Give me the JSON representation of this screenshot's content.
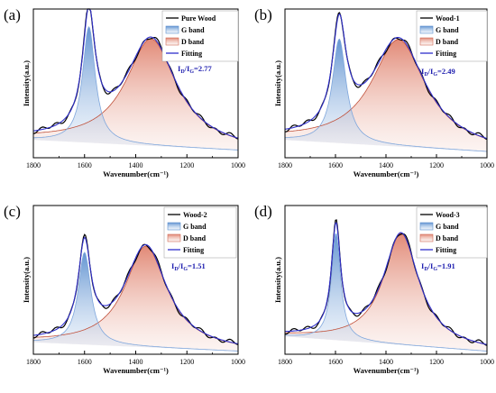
{
  "chart_data": [
    {
      "type": "line",
      "panel_label": "(a)",
      "xlabel": "Wavenumber(cm⁻¹)",
      "ylabel": "Intensity(a.u.)",
      "x_ticks": [
        1800,
        1600,
        1400,
        1200,
        1000
      ],
      "xlim": [
        1800,
        1000
      ],
      "x_reversed": true,
      "legend": [
        "Pure Wood",
        "G band",
        "D band",
        "Fitting"
      ],
      "legend_position": "top-right",
      "ratio_label": {
        "prefix": "I",
        "num_sub": "D",
        "slash": "/I",
        "den_sub": "G",
        "value": "=2.77"
      },
      "peaks": {
        "G": {
          "center": 1583,
          "height": 0.78,
          "width": 30
        },
        "D": {
          "center": 1340,
          "height": 0.72,
          "width": 120
        }
      },
      "baseline": {
        "start": 0.12,
        "end": 0.05
      }
    },
    {
      "type": "line",
      "panel_label": "(b)",
      "xlabel": "Wavenumber(cm⁻¹)",
      "ylabel": "Intensity(a.u.)",
      "x_ticks": [
        1800,
        1600,
        1400,
        1200,
        1000
      ],
      "xlim": [
        1800,
        1000
      ],
      "x_reversed": true,
      "legend": [
        "Wood-1",
        "G band",
        "D band",
        "Fitting"
      ],
      "legend_position": "top-right",
      "ratio_label": {
        "prefix": "I",
        "num_sub": "D",
        "slash": "/I",
        "den_sub": "G",
        "value": "=2.49"
      },
      "peaks": {
        "G": {
          "center": 1585,
          "height": 0.7,
          "width": 33
        },
        "D": {
          "center": 1350,
          "height": 0.72,
          "width": 130
        }
      },
      "baseline": {
        "start": 0.12,
        "end": 0.04
      }
    },
    {
      "type": "line",
      "panel_label": "(c)",
      "xlabel": "Wavenumber(cm⁻¹)",
      "ylabel": "Intensity(a.u.)",
      "x_ticks": [
        1800,
        1600,
        1400,
        1200,
        1000
      ],
      "xlim": [
        1800,
        1000
      ],
      "x_reversed": true,
      "legend": [
        "Wood-2",
        "G band",
        "D band",
        "Fitting"
      ],
      "legend_position": "top-right",
      "ratio_label": {
        "prefix": "I",
        "num_sub": "D",
        "slash": "/I",
        "den_sub": "G",
        "value": "=1.51"
      },
      "peaks": {
        "G": {
          "center": 1600,
          "height": 0.62,
          "width": 30
        },
        "D": {
          "center": 1360,
          "height": 0.68,
          "width": 100
        }
      },
      "baseline": {
        "start": 0.08,
        "end": 0.02
      }
    },
    {
      "type": "line",
      "panel_label": "(d)",
      "xlabel": "Wavenumber(cm⁻¹)",
      "ylabel": "Intensity(a.u.)",
      "x_ticks": [
        1800,
        1600,
        1400,
        1200,
        1000
      ],
      "xlim": [
        1800,
        1000
      ],
      "x_reversed": true,
      "legend": [
        "Wood-3",
        "G band",
        "D band",
        "Fitting"
      ],
      "legend_position": "top-right",
      "ratio_label": {
        "prefix": "I",
        "num_sub": "D",
        "slash": "/I",
        "den_sub": "G",
        "value": "=1.91"
      },
      "peaks": {
        "G": {
          "center": 1598,
          "height": 0.72,
          "width": 22
        },
        "D": {
          "center": 1340,
          "height": 0.75,
          "width": 85
        }
      },
      "baseline": {
        "start": 0.12,
        "end": 0.02
      }
    }
  ],
  "colors": {
    "spectrum": "#000000",
    "g_band": "#5b8fcf",
    "d_band": "#e0836f",
    "fitting": "#3030cc",
    "ratio_text": "#2020b0"
  }
}
